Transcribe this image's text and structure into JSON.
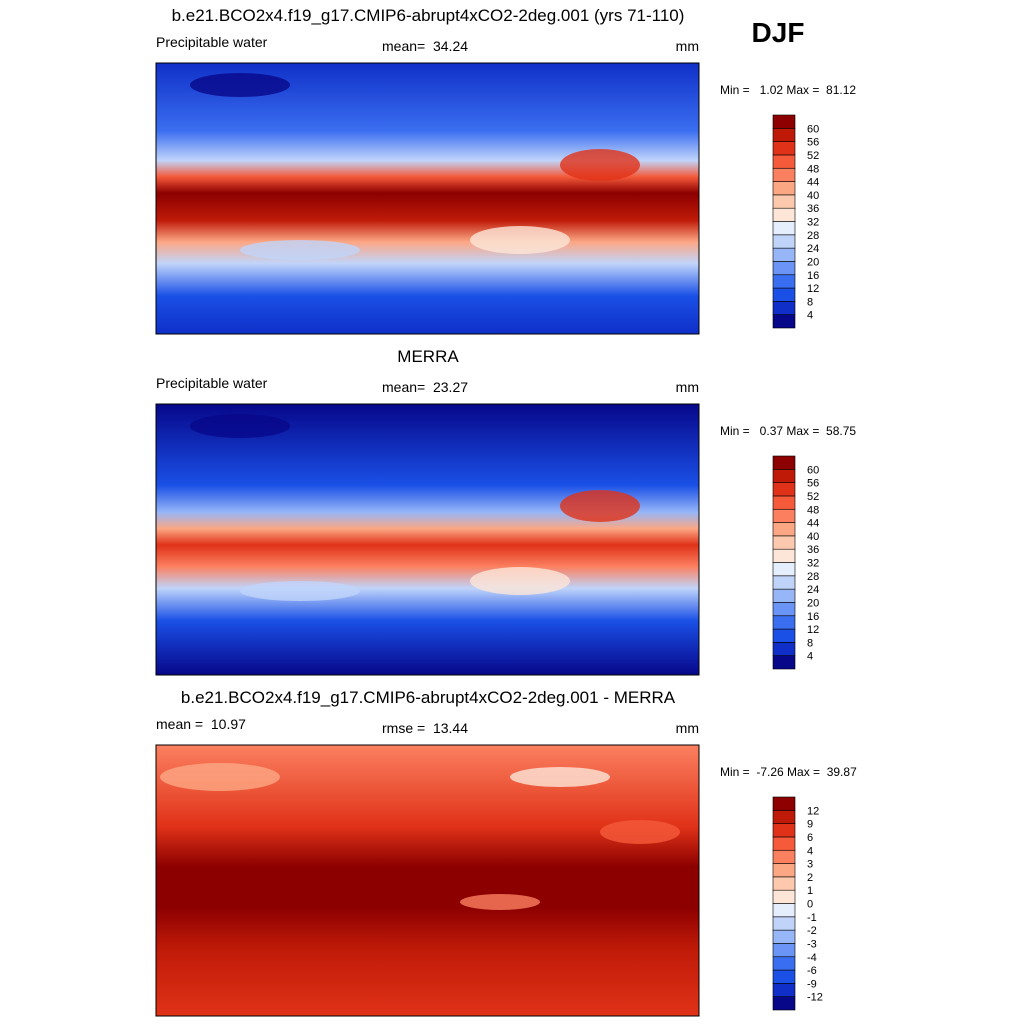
{
  "header": {
    "season": "DJF"
  },
  "panels": [
    {
      "title": "b.e21.BCO2x4.f19_g17.CMIP6-abrupt4xCO2-2deg.001 (yrs 71-110)",
      "left_label": "Precipitable water",
      "center_label": "mean=  34.24",
      "right_label": "mm",
      "range_label": "Min =   1.02 Max =  81.12",
      "colorbar": {
        "labels": [
          4,
          8,
          12,
          16,
          20,
          24,
          28,
          32,
          36,
          40,
          44,
          48,
          52,
          56,
          60
        ],
        "colors": [
          "#07078a",
          "#0f2fc8",
          "#1a50e6",
          "#3a6ef0",
          "#6a94f5",
          "#97b6f7",
          "#c0d4fa",
          "#e4eefc",
          "#fde6d8",
          "#fcc9ae",
          "#fca784",
          "#fb8060",
          "#f55a3a",
          "#e03218",
          "#bf1a08",
          "#8c0000"
        ]
      }
    },
    {
      "title": "MERRA",
      "left_label": "Precipitable water",
      "center_label": "mean=  23.27",
      "right_label": "mm",
      "range_label": "Min =   0.37 Max =  58.75",
      "colorbar": {
        "labels": [
          4,
          8,
          12,
          16,
          20,
          24,
          28,
          32,
          36,
          40,
          44,
          48,
          52,
          56,
          60
        ],
        "colors": [
          "#07078a",
          "#0f2fc8",
          "#1a50e6",
          "#3a6ef0",
          "#6a94f5",
          "#97b6f7",
          "#c0d4fa",
          "#e4eefc",
          "#fde6d8",
          "#fcc9ae",
          "#fca784",
          "#fb8060",
          "#f55a3a",
          "#e03218",
          "#bf1a08",
          "#8c0000"
        ]
      }
    },
    {
      "title": "b.e21.BCO2x4.f19_g17.CMIP6-abrupt4xCO2-2deg.001 - MERRA",
      "left_label": "mean =  10.97",
      "center_label": "rmse =  13.44",
      "right_label": "mm",
      "range_label": "Min =  -7.26 Max =  39.87",
      "colorbar": {
        "labels": [
          -12,
          -9,
          -6,
          -4,
          -3,
          -2,
          -1,
          0,
          1,
          2,
          3,
          4,
          6,
          9,
          12
        ],
        "colors": [
          "#07078a",
          "#0f2fc8",
          "#1a50e6",
          "#3a6ef0",
          "#6a94f5",
          "#97b6f7",
          "#c0d4fa",
          "#e4eefc",
          "#fde6d8",
          "#fcc9ae",
          "#fca784",
          "#fb8060",
          "#f55a3a",
          "#e03218",
          "#bf1a08",
          "#8c0000"
        ]
      }
    }
  ]
}
